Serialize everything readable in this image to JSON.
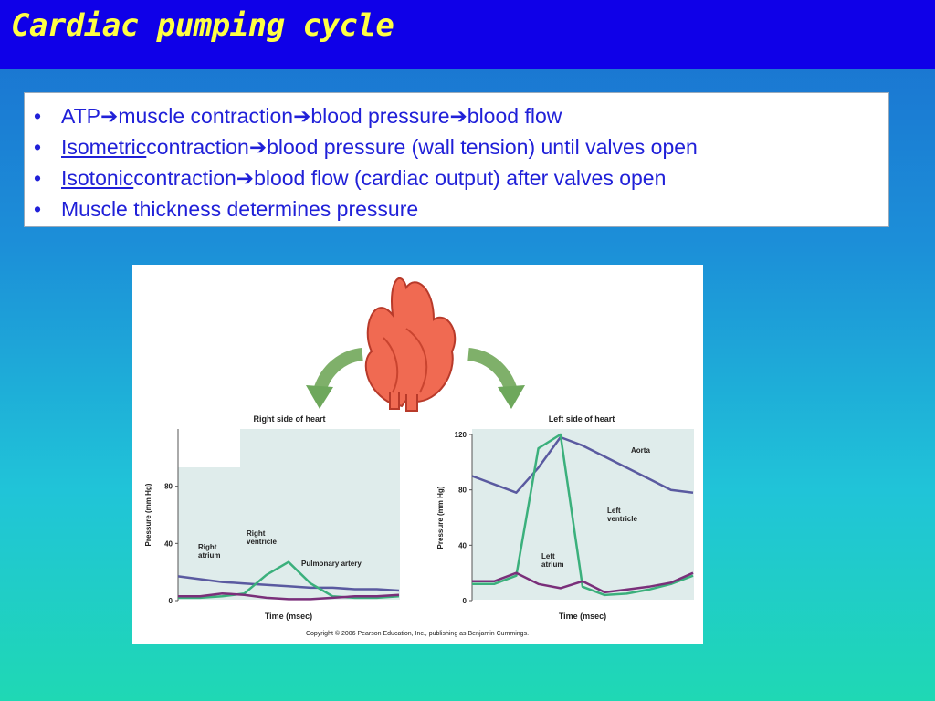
{
  "title": "Cardiac pumping cycle",
  "bullets": [
    {
      "parts": [
        "ATP ",
        " muscle contraction ",
        " blood pressure ",
        " blood flow"
      ]
    },
    {
      "lead": "Isometric",
      "rest1": " contraction ",
      "rest2": " blood pressure (wall tension) until valves open"
    },
    {
      "lead": "Isotonic",
      "rest1": " contraction ",
      "rest2": " blood flow (cardiac output) after valves open"
    },
    {
      "text": "Muscle thickness determines pressure"
    }
  ],
  "arrow_glyph": "➔",
  "bullet_glyph": "•",
  "figure": {
    "copyright": "Copyright © 2006 Pearson Education, Inc., publishing as Benjamin Cummings."
  },
  "chart_data": [
    {
      "type": "line",
      "title": "Right side of heart",
      "xlabel": "Time (msec)",
      "ylabel": "Pressure (mm Hg)",
      "yticks": [
        "0",
        "40",
        "80"
      ],
      "ylim": [
        0,
        120
      ],
      "annotations": [
        "Right\natrium",
        "Right\nventricle",
        "Pulmonary artery"
      ],
      "series": [
        {
          "name": "Pulmonary artery",
          "color": "#5a5aa0",
          "values": [
            17,
            15,
            13,
            12,
            11,
            10,
            9,
            9,
            8,
            8,
            7
          ]
        },
        {
          "name": "Right ventricle",
          "color": "#3bb07c",
          "values": [
            2,
            2,
            3,
            5,
            18,
            27,
            12,
            3,
            2,
            2,
            3
          ]
        },
        {
          "name": "Right atrium",
          "color": "#7a2f7a",
          "values": [
            3,
            3,
            5,
            4,
            2,
            1,
            1,
            2,
            3,
            3,
            4
          ]
        }
      ]
    },
    {
      "type": "line",
      "title": "Left side of heart",
      "xlabel": "Time (msec)",
      "ylabel": "Pressure (mm Hg)",
      "yticks": [
        "0",
        "40",
        "80",
        "120"
      ],
      "ylim": [
        0,
        120
      ],
      "annotations": [
        "Aorta",
        "Left\nventricle",
        "Left\natrium"
      ],
      "series": [
        {
          "name": "Aorta",
          "color": "#5a5aa0",
          "values": [
            90,
            84,
            78,
            96,
            118,
            112,
            104,
            96,
            88,
            80,
            78
          ]
        },
        {
          "name": "Left ventricle",
          "color": "#3bb07c",
          "values": [
            12,
            12,
            18,
            110,
            120,
            10,
            4,
            5,
            8,
            12,
            18
          ]
        },
        {
          "name": "Left atrium",
          "color": "#7a2f7a",
          "values": [
            14,
            14,
            20,
            12,
            9,
            14,
            6,
            8,
            10,
            13,
            20
          ]
        }
      ]
    }
  ]
}
